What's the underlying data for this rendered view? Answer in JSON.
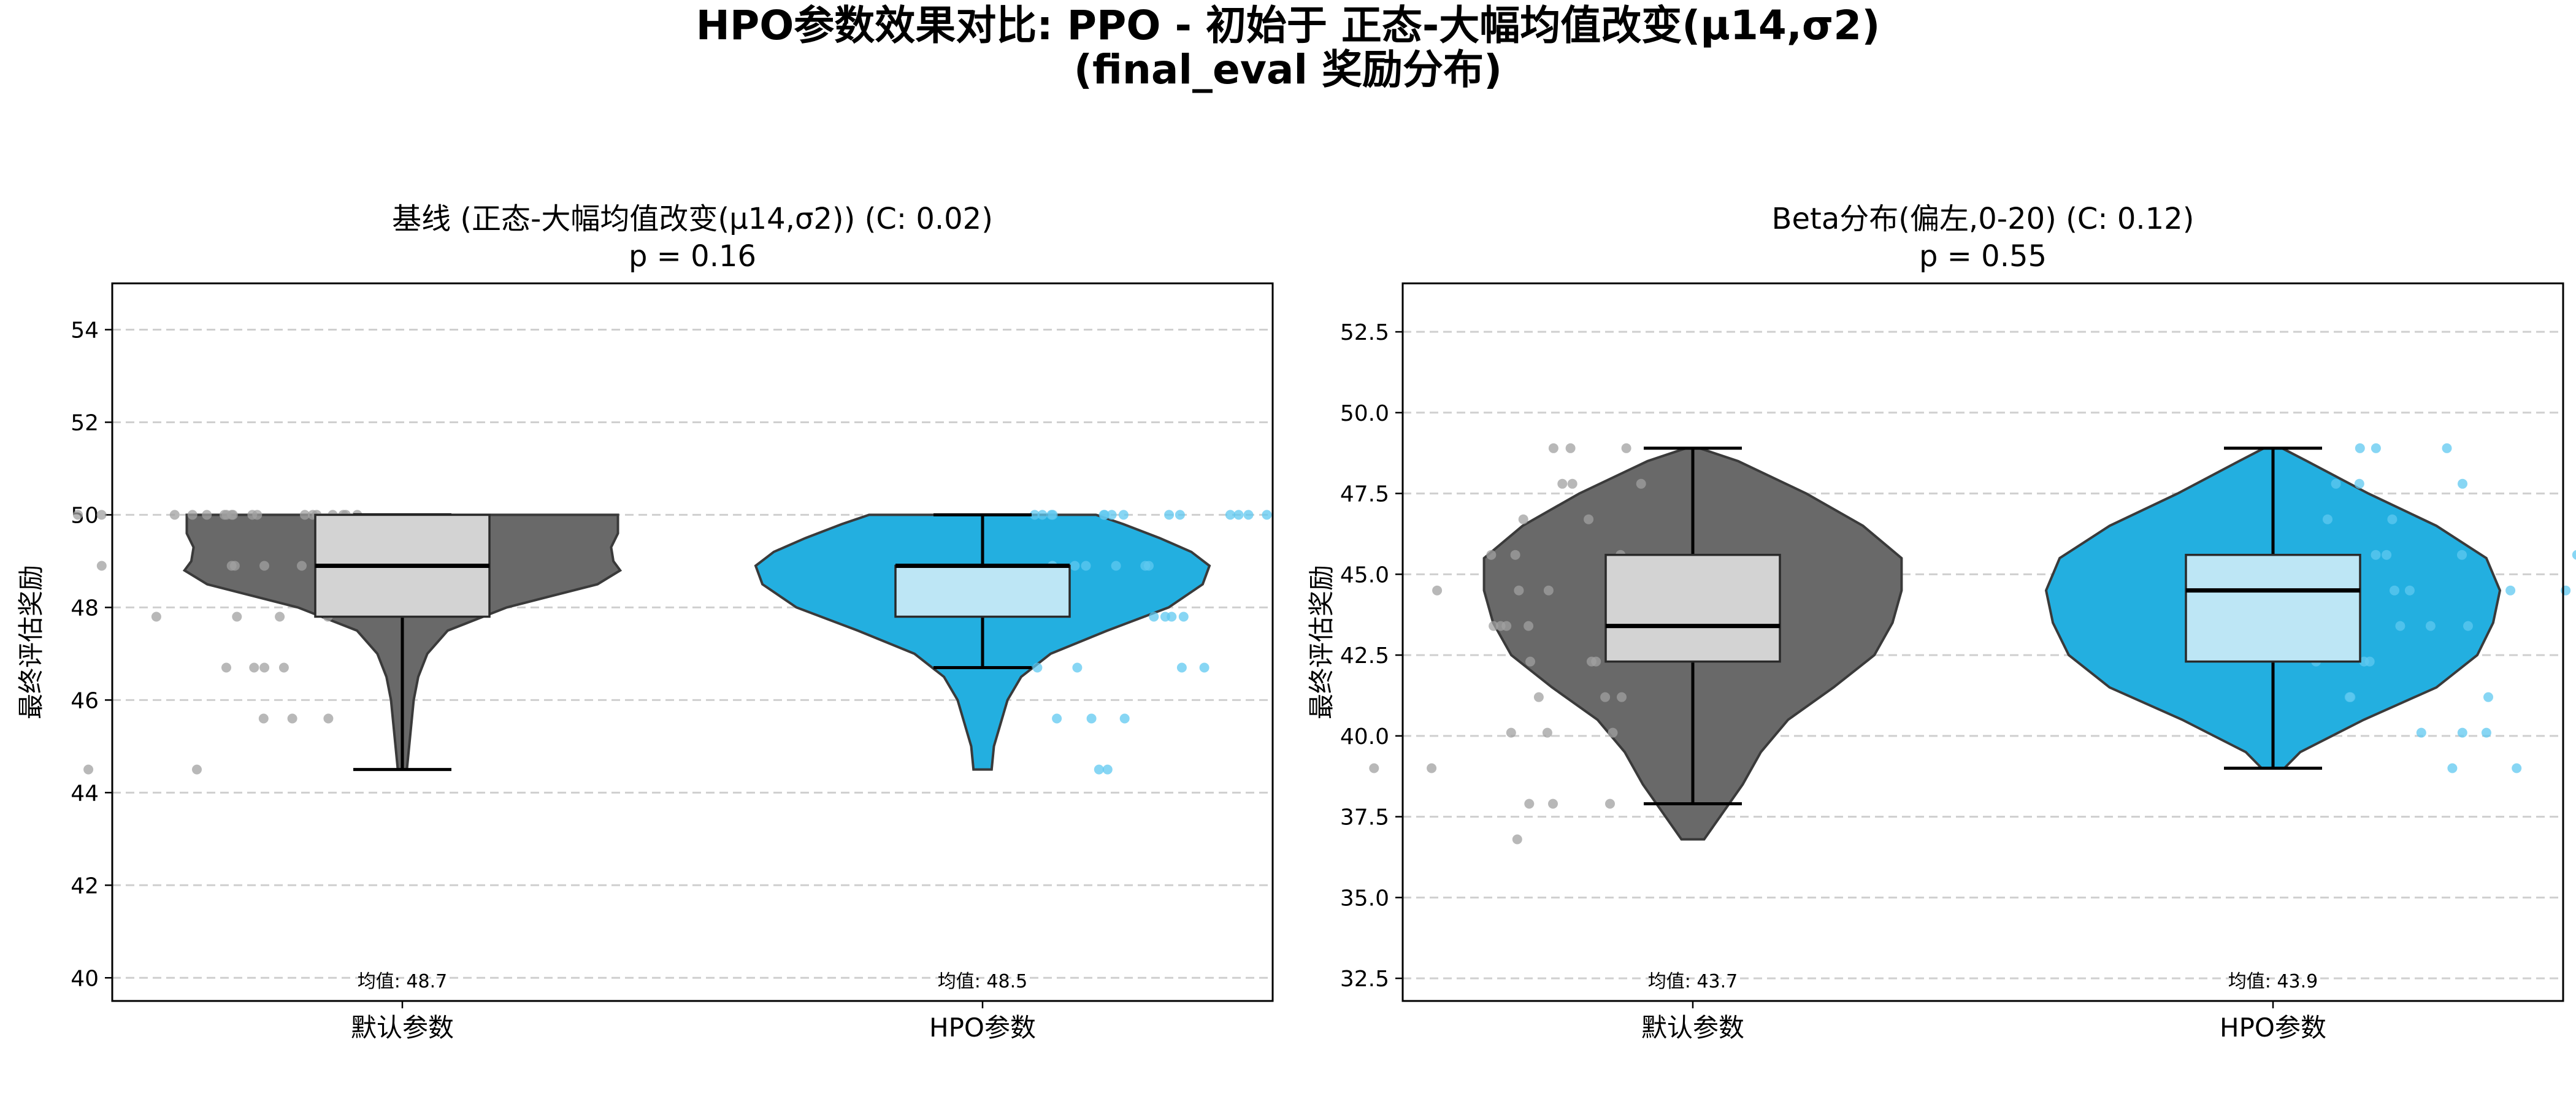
{
  "figure": {
    "title_line1": "HPO参数效果对比: PPO - 初始于 正态-大幅均值改变(μ14,σ2)",
    "title_line2": "(final_eval 奖励分布)"
  },
  "colors": {
    "default_violin": "#696969",
    "default_box": "#d3d3d3",
    "default_points": "#a0a0a0",
    "hpo_violin": "#23afe0",
    "hpo_box": "#bde6f5",
    "hpo_points": "#5fc8f0",
    "violin_edge": "#3a3a3a",
    "grid": "#cfcfcf"
  },
  "chart_data": [
    {
      "type": "violin",
      "title": "基线 (正态-大幅均值改变(μ14,σ2)) (C: 0.02)",
      "subtitle": "p = 0.16",
      "ylabel": "最终评估奖励",
      "ylim": [
        39.5,
        55
      ],
      "yticks": [
        40,
        42,
        44,
        46,
        48,
        50,
        52,
        54
      ],
      "ytick_labels": [
        "40",
        "42",
        "44",
        "46",
        "48",
        "50",
        "52",
        "54"
      ],
      "grid": true,
      "categories": [
        "默认参数",
        "HPO参数"
      ],
      "groups": [
        {
          "category": "默认参数",
          "mean_label": "均值: 48.7",
          "box": {
            "whisker_low": 44.5,
            "q1": 47.8,
            "median": 48.9,
            "q3": 50.0,
            "whisker_high": 50.0
          },
          "violin_profile": [
            [
              44.5,
              0.02
            ],
            [
              45.0,
              0.03
            ],
            [
              45.5,
              0.04
            ],
            [
              46.0,
              0.05
            ],
            [
              46.5,
              0.07
            ],
            [
              47.0,
              0.11
            ],
            [
              47.5,
              0.2
            ],
            [
              48.0,
              0.46
            ],
            [
              48.5,
              0.86
            ],
            [
              48.8,
              0.96
            ],
            [
              49.0,
              0.93
            ],
            [
              49.3,
              0.92
            ],
            [
              49.6,
              0.95
            ],
            [
              50.0,
              0.95
            ]
          ],
          "points": [
            50,
            50,
            50,
            50,
            50,
            50,
            50,
            50,
            50,
            50,
            50,
            50,
            50,
            50,
            50,
            50,
            50,
            50,
            48.9,
            48.9,
            48.9,
            48.9,
            48.9,
            47.8,
            47.8,
            47.8,
            47.8,
            46.7,
            46.7,
            46.7,
            46.7,
            45.6,
            45.6,
            45.6,
            44.5,
            44.5
          ]
        },
        {
          "category": "HPO参数",
          "mean_label": "均值: 48.5",
          "box": {
            "whisker_low": 46.7,
            "q1": 47.8,
            "median": 48.9,
            "q3": 48.9,
            "whisker_high": 50.0
          },
          "violin_profile": [
            [
              44.5,
              0.04
            ],
            [
              45.0,
              0.05
            ],
            [
              45.5,
              0.08
            ],
            [
              46.0,
              0.11
            ],
            [
              46.5,
              0.17
            ],
            [
              47.0,
              0.3
            ],
            [
              47.5,
              0.55
            ],
            [
              48.0,
              0.82
            ],
            [
              48.5,
              0.97
            ],
            [
              48.9,
              1.0
            ],
            [
              49.2,
              0.92
            ],
            [
              49.5,
              0.78
            ],
            [
              49.8,
              0.62
            ],
            [
              50.0,
              0.5
            ]
          ],
          "points": [
            50,
            50,
            50,
            50,
            50,
            50,
            50,
            50,
            50,
            50,
            50,
            50,
            50,
            50,
            48.9,
            48.9,
            48.9,
            48.9,
            48.9,
            48.9,
            48.9,
            47.8,
            47.8,
            47.8,
            47.8,
            46.7,
            46.7,
            46.7,
            46.7,
            45.6,
            45.6,
            45.6,
            44.5,
            44.5
          ]
        }
      ]
    },
    {
      "type": "violin",
      "title": "Beta分布(偏左,0-20) (C: 0.12)",
      "subtitle": "p = 0.55",
      "ylabel": "最终评估奖励",
      "ylim": [
        31.8,
        54
      ],
      "yticks": [
        32.5,
        35.0,
        37.5,
        40.0,
        42.5,
        45.0,
        47.5,
        50.0,
        52.5
      ],
      "ytick_labels": [
        "32.5",
        "35.0",
        "37.5",
        "40.0",
        "42.5",
        "45.0",
        "47.5",
        "50.0",
        "52.5"
      ],
      "grid": true,
      "categories": [
        "默认参数",
        "HPO参数"
      ],
      "groups": [
        {
          "category": "默认参数",
          "mean_label": "均值: 43.7",
          "box": {
            "whisker_low": 37.9,
            "q1": 42.3,
            "median": 43.4,
            "q3": 45.6,
            "whisker_high": 48.9
          },
          "violin_profile": [
            [
              36.8,
              0.05
            ],
            [
              37.5,
              0.12
            ],
            [
              38.5,
              0.22
            ],
            [
              39.5,
              0.3
            ],
            [
              40.5,
              0.42
            ],
            [
              41.5,
              0.62
            ],
            [
              42.5,
              0.8
            ],
            [
              43.5,
              0.88
            ],
            [
              44.5,
              0.92
            ],
            [
              45.5,
              0.92
            ],
            [
              46.5,
              0.75
            ],
            [
              47.5,
              0.5
            ],
            [
              48.5,
              0.2
            ],
            [
              48.9,
              0.03
            ]
          ],
          "points": [
            48.9,
            48.9,
            48.9,
            47.8,
            47.8,
            47.8,
            46.7,
            46.7,
            45.6,
            45.6,
            45.6,
            44.5,
            44.5,
            44.5,
            43.4,
            43.4,
            43.4,
            43.4,
            42.3,
            42.3,
            42.3,
            41.2,
            41.2,
            41.2,
            40.1,
            40.1,
            40.1,
            39.0,
            39.0,
            37.9,
            37.9,
            37.9,
            36.8
          ]
        },
        {
          "category": "HPO参数",
          "mean_label": "均值: 43.9",
          "box": {
            "whisker_low": 39.0,
            "q1": 42.3,
            "median": 44.5,
            "q3": 45.6,
            "whisker_high": 48.9
          },
          "violin_profile": [
            [
              39.0,
              0.05
            ],
            [
              39.5,
              0.12
            ],
            [
              40.5,
              0.4
            ],
            [
              41.5,
              0.72
            ],
            [
              42.5,
              0.9
            ],
            [
              43.5,
              0.97
            ],
            [
              44.5,
              1.0
            ],
            [
              45.5,
              0.94
            ],
            [
              46.5,
              0.72
            ],
            [
              47.5,
              0.42
            ],
            [
              48.5,
              0.15
            ],
            [
              48.9,
              0.04
            ]
          ],
          "points": [
            48.9,
            48.9,
            48.9,
            47.8,
            47.8,
            47.8,
            46.7,
            46.7,
            46.7,
            45.6,
            45.6,
            45.6,
            45.6,
            44.5,
            44.5,
            44.5,
            44.5,
            43.4,
            43.4,
            43.4,
            42.3,
            42.3,
            42.3,
            41.2,
            41.2,
            41.2,
            40.1,
            40.1,
            40.1,
            39.0,
            39.0
          ]
        }
      ]
    }
  ]
}
